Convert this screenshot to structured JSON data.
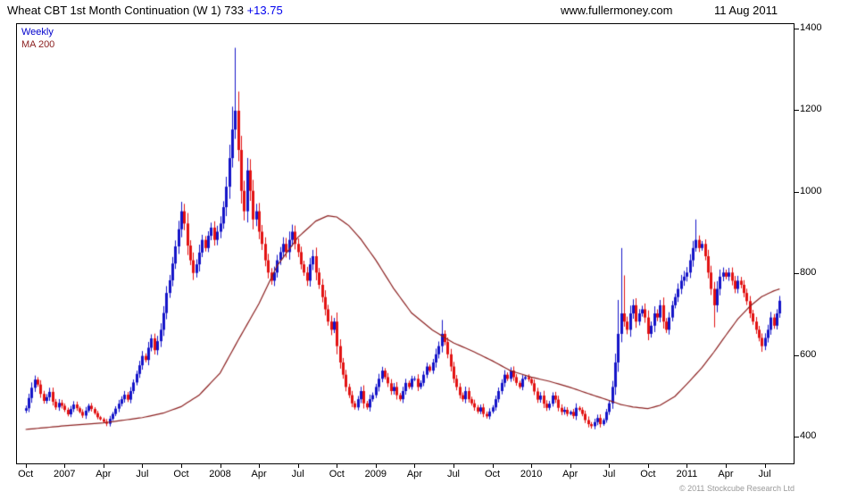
{
  "header": {
    "title": "Wheat CBT 1st Month Continuation (W 1) 733",
    "change": "+13.75",
    "website": "www.fullermoney.com",
    "date": "11 Aug 2011"
  },
  "legend": {
    "weekly": "Weekly",
    "ma": "MA 200"
  },
  "footer": {
    "copyright": "© 2011 Stockcube Research Ltd"
  },
  "colors": {
    "up": "#1414c8",
    "down": "#e21212",
    "ma": "#8b2020",
    "change_text": "#0000ee",
    "axis_text": "#000000"
  },
  "chart_data": {
    "type": "bar",
    "subtype": "weekly-ohlc-candles-with-ma",
    "title": "Wheat CBT 1st Month Continuation (W 1)",
    "frequency": "Weekly",
    "last_price": 733,
    "change": 13.75,
    "ylim": [
      335,
      1410
    ],
    "y_ticks": [
      400,
      600,
      800,
      1000,
      1200,
      1400
    ],
    "x_labels": [
      "Oct",
      "2007",
      "Apr",
      "Jul",
      "Oct",
      "2008",
      "Apr",
      "Jul",
      "Oct",
      "2009",
      "Apr",
      "Jul",
      "Oct",
      "2010",
      "Apr",
      "Jul",
      "Oct",
      "2011",
      "Apr",
      "Jul"
    ],
    "x_label_weeks": [
      0,
      13,
      26,
      39,
      52,
      65,
      78,
      91,
      104,
      117,
      130,
      143,
      156,
      169,
      182,
      195,
      208,
      221,
      234,
      247
    ],
    "weekly_closes": [
      470,
      495,
      520,
      540,
      528,
      505,
      488,
      497,
      510,
      486,
      472,
      483,
      476,
      466,
      455,
      468,
      479,
      470,
      461,
      452,
      464,
      476,
      468,
      458,
      448,
      443,
      437,
      432,
      444,
      456,
      469,
      481,
      492,
      503,
      491,
      512,
      533,
      554,
      575,
      598,
      588,
      618,
      641,
      612,
      634,
      662,
      703,
      752,
      783,
      824,
      866,
      908,
      952,
      922,
      868,
      832,
      801,
      822,
      851,
      882,
      862,
      892,
      912,
      882,
      902,
      922,
      962,
      1012,
      1082,
      1152,
      1198,
      1102,
      1002,
      952,
      1052,
      1002,
      932,
      952,
      902,
      872,
      832,
      802,
      782,
      802,
      832,
      852,
      872,
      852,
      882,
      902,
      872,
      852,
      822,
      802,
      782,
      822,
      842,
      802,
      772,
      742,
      712,
      682,
      662,
      682,
      622,
      582,
      552,
      522,
      502,
      482,
      472,
      492,
      512,
      482,
      472,
      492,
      502,
      522,
      542,
      562,
      546,
      531,
      512,
      522,
      502,
      492,
      512,
      532,
      522,
      542,
      542,
      522,
      532,
      552,
      572,
      562,
      582,
      602,
      622,
      652,
      632,
      602,
      572,
      542,
      522,
      502,
      492,
      512,
      492,
      482,
      472,
      462,
      472,
      456,
      450,
      462,
      472,
      492,
      512,
      532,
      552,
      542,
      562,
      546,
      532,
      522,
      542,
      546,
      541,
      531,
      511,
      491,
      501,
      481,
      471,
      481,
      501,
      491,
      471,
      461,
      466,
      456,
      461,
      451,
      471,
      466,
      456,
      441,
      431,
      426,
      436,
      446,
      431,
      441,
      461,
      482,
      522,
      582,
      652,
      702,
      682,
      662,
      702,
      722,
      682,
      702,
      712,
      692,
      652,
      672,
      702,
      692,
      722,
      682,
      662,
      692,
      722,
      742,
      762,
      782,
      792,
      802,
      832,
      862,
      882,
      862,
      872,
      842,
      802,
      762,
      722,
      762,
      792,
      802,
      792,
      802,
      782,
      762,
      782,
      772,
      752,
      732,
      702,
      682,
      662,
      642,
      622,
      642,
      662,
      692,
      672,
      702,
      733
    ],
    "spike_highs": {
      "3": 550,
      "52": 975,
      "69": 1208,
      "70": 1352,
      "71": 1245,
      "139": 686,
      "198": 735,
      "199": 862,
      "200": 795,
      "224": 932
    },
    "spike_lows": {
      "189": 420,
      "230": 668,
      "246": 608,
      "247": 612
    },
    "ma200": [
      [
        0,
        418
      ],
      [
        13,
        427
      ],
      [
        26,
        434
      ],
      [
        39,
        447
      ],
      [
        46,
        458
      ],
      [
        52,
        474
      ],
      [
        58,
        502
      ],
      [
        65,
        556
      ],
      [
        71,
        636
      ],
      [
        78,
        726
      ],
      [
        84,
        818
      ],
      [
        91,
        888
      ],
      [
        97,
        928
      ],
      [
        101,
        941
      ],
      [
        104,
        938
      ],
      [
        108,
        917
      ],
      [
        112,
        884
      ],
      [
        117,
        833
      ],
      [
        123,
        763
      ],
      [
        129,
        703
      ],
      [
        136,
        661
      ],
      [
        143,
        630
      ],
      [
        149,
        611
      ],
      [
        156,
        586
      ],
      [
        162,
        562
      ],
      [
        169,
        546
      ],
      [
        175,
        536
      ],
      [
        182,
        521
      ],
      [
        188,
        506
      ],
      [
        195,
        489
      ],
      [
        199,
        479
      ],
      [
        203,
        473
      ],
      [
        208,
        469
      ],
      [
        212,
        477
      ],
      [
        217,
        499
      ],
      [
        221,
        529
      ],
      [
        226,
        569
      ],
      [
        230,
        607
      ],
      [
        234,
        648
      ],
      [
        238,
        688
      ],
      [
        242,
        719
      ],
      [
        246,
        743
      ],
      [
        250,
        757
      ],
      [
        252,
        762
      ]
    ]
  }
}
